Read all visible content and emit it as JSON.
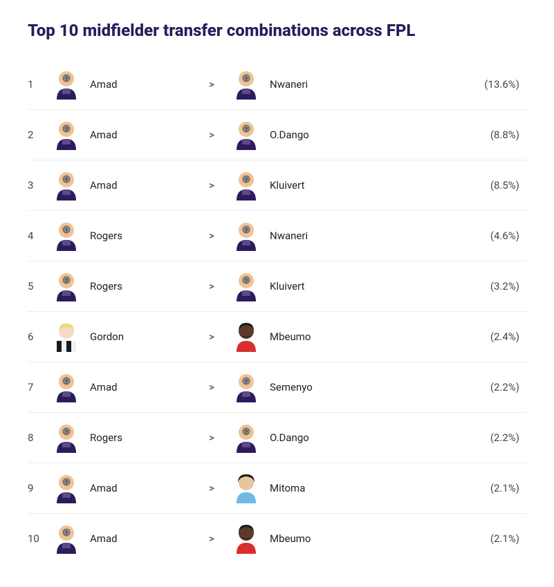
{
  "title": "Top 10 midfielder transfer combinations across FPL",
  "arrow_symbol": ">",
  "colors": {
    "title": "#2d1b5c",
    "text": "#222222",
    "secondary": "#444444",
    "divider": "#ececec",
    "background": "#ffffff"
  },
  "typography": {
    "title_fontsize": 24,
    "row_fontsize": 15
  },
  "player_avatars": {
    "placeholder": {
      "type": "placeholder",
      "skin": "#f0c294",
      "shirt": "#2d1b5c",
      "shirt_accent": "#5a4b8a"
    },
    "gordon": {
      "type": "custom",
      "skin": "#f5d9c3",
      "hair": "#e8dd6a",
      "shirt_stripes": [
        "#1a1a1a",
        "#f0f0f0"
      ]
    },
    "mbeumo": {
      "type": "custom",
      "skin": "#5b3a28",
      "hair": "#1a1a1a",
      "shirt": "#d92e2e"
    },
    "mitoma": {
      "type": "custom",
      "skin": "#e8c59f",
      "hair": "#1a1a1a",
      "shirt": "#6eb9e8"
    }
  },
  "rows": [
    {
      "rank": "1",
      "from": "Amad",
      "from_avatar": "placeholder",
      "to": "Nwaneri",
      "to_avatar": "placeholder",
      "pct": "(13.6%)"
    },
    {
      "rank": "2",
      "from": "Amad",
      "from_avatar": "placeholder",
      "to": "O.Dango",
      "to_avatar": "placeholder",
      "pct": "(8.8%)"
    },
    {
      "rank": "3",
      "from": "Amad",
      "from_avatar": "placeholder",
      "to": "Kluivert",
      "to_avatar": "placeholder",
      "pct": "(8.5%)"
    },
    {
      "rank": "4",
      "from": "Rogers",
      "from_avatar": "placeholder",
      "to": "Nwaneri",
      "to_avatar": "placeholder",
      "pct": "(4.6%)"
    },
    {
      "rank": "5",
      "from": "Rogers",
      "from_avatar": "placeholder",
      "to": "Kluivert",
      "to_avatar": "placeholder",
      "pct": "(3.2%)"
    },
    {
      "rank": "6",
      "from": "Gordon",
      "from_avatar": "gordon",
      "to": "Mbeumo",
      "to_avatar": "mbeumo",
      "pct": "(2.4%)"
    },
    {
      "rank": "7",
      "from": "Amad",
      "from_avatar": "placeholder",
      "to": "Semenyo",
      "to_avatar": "placeholder",
      "pct": "(2.2%)"
    },
    {
      "rank": "8",
      "from": "Rogers",
      "from_avatar": "placeholder",
      "to": "O.Dango",
      "to_avatar": "placeholder",
      "pct": "(2.2%)"
    },
    {
      "rank": "9",
      "from": "Amad",
      "from_avatar": "placeholder",
      "to": "Mitoma",
      "to_avatar": "mitoma",
      "pct": "(2.1%)"
    },
    {
      "rank": "10",
      "from": "Amad",
      "from_avatar": "placeholder",
      "to": "Mbeumo",
      "to_avatar": "mbeumo",
      "pct": "(2.1%)"
    }
  ]
}
